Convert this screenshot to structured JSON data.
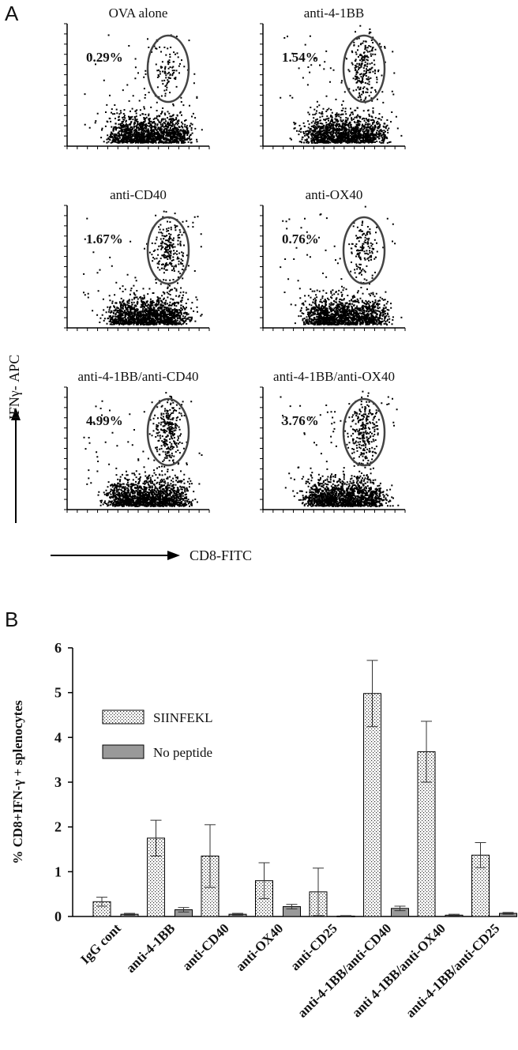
{
  "panel_a": {
    "label": "A",
    "y_axis_label": "IFNγ- APC",
    "x_axis_label": "CD8-FITC",
    "plots": [
      {
        "title": "OVA alone",
        "percent": "0.29%",
        "gate_density": 0.25
      },
      {
        "title": "anti-4-1BB",
        "percent": "1.54%",
        "gate_density": 0.75
      },
      {
        "title": "anti-CD40",
        "percent": "1.67%",
        "gate_density": 0.8
      },
      {
        "title": "anti-OX40",
        "percent": "0.76%",
        "gate_density": 0.45
      },
      {
        "title": "anti-4-1BB/anti-CD40",
        "percent": "4.99%",
        "gate_density": 1.0
      },
      {
        "title": "anti-4-1BB/anti-OX40",
        "percent": "3.76%",
        "gate_density": 0.95
      }
    ]
  },
  "panel_b": {
    "label": "B",
    "legend": {
      "siinfekl": "SIINFEKL",
      "no_peptide": "No peptide"
    }
  },
  "chart_data": {
    "type": "bar",
    "ylabel": "% CD8+IFN-γ + splenocytes",
    "ylim": [
      0,
      6
    ],
    "yticks": [
      "0",
      "1",
      "2",
      "3",
      "4",
      "5",
      "6"
    ],
    "legend_position": "top-left",
    "categories": [
      "IgG cont",
      "anti-4-1BB",
      "anti-CD40",
      "anti-OX40",
      "anti-CD25",
      "anti-4-1BB/anti-CD40",
      "anti 4-1BB/anti-OX40",
      "anti-4-1BB/anti-CD25"
    ],
    "series": [
      {
        "name": "SIINFEKL",
        "values": [
          0.33,
          1.75,
          1.35,
          0.8,
          0.55,
          4.98,
          3.68,
          1.37
        ],
        "errors": [
          0.1,
          0.4,
          0.7,
          0.4,
          0.53,
          0.74,
          0.68,
          0.28
        ],
        "color": "#ffffff",
        "pattern": "dots"
      },
      {
        "name": "No peptide",
        "values": [
          0.05,
          0.15,
          0.05,
          0.22,
          0.01,
          0.18,
          0.03,
          0.07
        ],
        "errors": [
          0.02,
          0.05,
          0.02,
          0.05,
          0.01,
          0.05,
          0.02,
          0.02
        ],
        "color": "#999999"
      }
    ]
  }
}
